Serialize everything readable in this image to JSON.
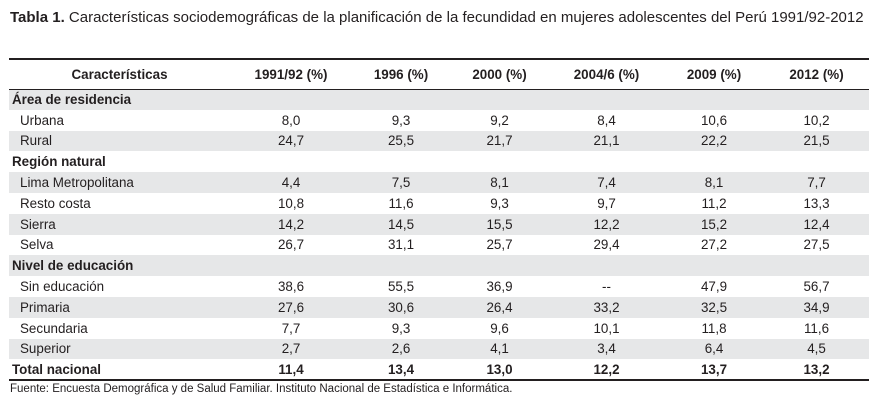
{
  "caption": {
    "label": "Tabla 1.",
    "text": "Características sociodemográficas de la planificación de la fecundidad en mujeres adolescentes del Perú 1991/92-2012"
  },
  "table": {
    "headers": [
      "Características",
      "1991/92 (%)",
      "1996 (%)",
      "2000 (%)",
      "2004/6 (%)",
      "2009 (%)",
      "2012 (%)"
    ],
    "rows": [
      {
        "type": "group",
        "label": "Área de residencia",
        "values": []
      },
      {
        "type": "item",
        "label": "Urbana",
        "values": [
          "8,0",
          "9,3",
          "9,2",
          "8,4",
          "10,6",
          "10,2"
        ]
      },
      {
        "type": "item",
        "label": "Rural",
        "values": [
          "24,7",
          "25,5",
          "21,7",
          "21,1",
          "22,2",
          "21,5"
        ]
      },
      {
        "type": "group",
        "label": "Región natural",
        "values": []
      },
      {
        "type": "item",
        "label": "Lima Metropolitana",
        "values": [
          "4,4",
          "7,5",
          "8,1",
          "7,4",
          "8,1",
          "7,7"
        ]
      },
      {
        "type": "item",
        "label": "Resto costa",
        "values": [
          "10,8",
          "11,6",
          "9,3",
          "9,7",
          "11,2",
          "13,3"
        ]
      },
      {
        "type": "item",
        "label": "Sierra",
        "values": [
          "14,2",
          "14,5",
          "15,5",
          "12,2",
          "15,2",
          "12,4"
        ]
      },
      {
        "type": "item",
        "label": "Selva",
        "values": [
          "26,7",
          "31,1",
          "25,7",
          "29,4",
          "27,2",
          "27,5"
        ]
      },
      {
        "type": "group",
        "label": "Nivel de educación",
        "values": []
      },
      {
        "type": "item",
        "label": "Sin educación",
        "values": [
          "38,6",
          "55,5",
          "36,9",
          "--",
          "47,9",
          "56,7"
        ]
      },
      {
        "type": "item",
        "label": "Primaria",
        "values": [
          "27,6",
          "30,6",
          "26,4",
          "33,2",
          "32,5",
          "34,9"
        ]
      },
      {
        "type": "item",
        "label": "Secundaria",
        "values": [
          "7,7",
          "9,3",
          "9,6",
          "10,1",
          "11,8",
          "11,6"
        ]
      },
      {
        "type": "item",
        "label": "Superior",
        "values": [
          "2,7",
          "2,6",
          "4,1",
          "3,4",
          "6,4",
          "4,5"
        ]
      },
      {
        "type": "total",
        "label": "Total nacional",
        "values": [
          "11,4",
          "13,4",
          "13,0",
          "12,2",
          "13,7",
          "13,2"
        ]
      }
    ]
  },
  "source": "Fuente: Encuesta Demográfica y de Salud Familiar. Instituto Nacional de Estadística e Informática.",
  "colors": {
    "shade": "#e6e7e8",
    "rule": "#231f20",
    "text": "#231f20"
  }
}
